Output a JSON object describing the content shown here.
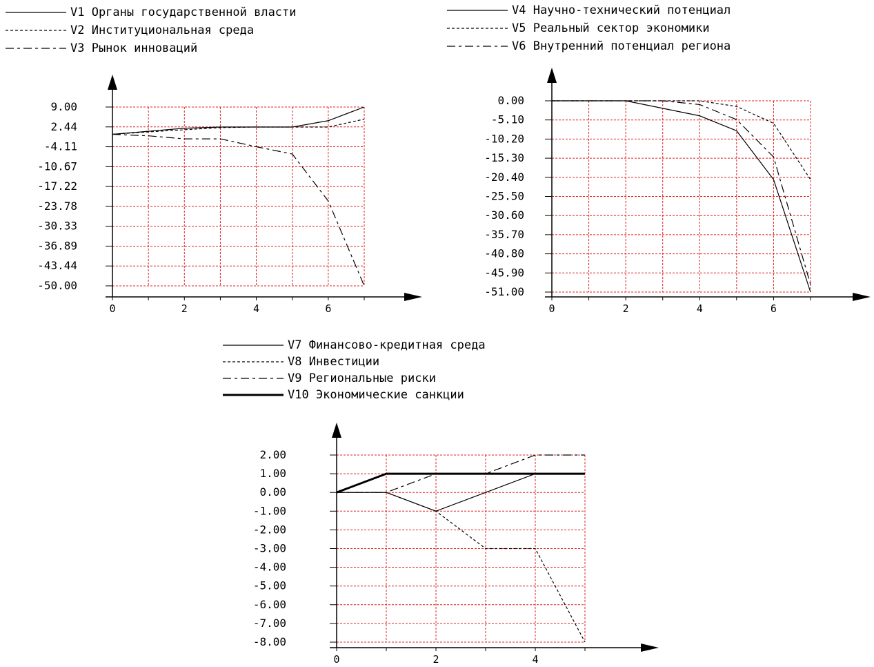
{
  "colors": {
    "grid": "#e02020",
    "ink": "#000000",
    "background": "#ffffff"
  },
  "chart_data": [
    {
      "type": "line",
      "grid": true,
      "legend_placement": "top",
      "x": [
        0,
        1,
        2,
        3,
        4,
        5,
        6,
        7
      ],
      "xticks": [
        "0",
        "2",
        "4",
        "6"
      ],
      "yticks": [
        "9.00",
        "2.44",
        "-4.11",
        "-10.67",
        "-17.22",
        "-23.78",
        "-30.33",
        "-36.89",
        "-43.44",
        "-50.00"
      ],
      "ylim": [
        -50,
        9
      ],
      "xlim": [
        0,
        7
      ],
      "series": [
        {
          "name": "V1 Органы государственной власти",
          "style": "solid",
          "values": [
            0,
            1,
            2,
            2.4,
            2.4,
            2.4,
            4.5,
            9
          ]
        },
        {
          "name": "V2 Институциональная среда",
          "style": "dashed",
          "values": [
            0,
            0.8,
            1.5,
            2.2,
            2.4,
            2.4,
            2.4,
            5
          ]
        },
        {
          "name": "V3 Рынок инноваций",
          "style": "dashdot",
          "values": [
            0,
            -0.5,
            -1.5,
            -1.5,
            -4.1,
            -6.5,
            -22,
            -50
          ]
        }
      ]
    },
    {
      "type": "line",
      "grid": true,
      "legend_placement": "top",
      "x": [
        0,
        1,
        2,
        3,
        4,
        5,
        6,
        7
      ],
      "xticks": [
        "0",
        "2",
        "4",
        "6"
      ],
      "yticks": [
        "0.00",
        "-5.10",
        "-10.20",
        "-15.30",
        "-20.40",
        "-25.50",
        "-30.60",
        "-35.70",
        "-40.80",
        "-45.90",
        "-51.00"
      ],
      "ylim": [
        -51,
        0
      ],
      "xlim": [
        0,
        7
      ],
      "series": [
        {
          "name": "V4 Научно-технический потенциал",
          "style": "solid",
          "values": [
            0,
            0,
            0,
            -2,
            -4,
            -8,
            -21,
            -51
          ]
        },
        {
          "name": "V5 Реальный сектор экономики",
          "style": "dashed",
          "values": [
            0,
            0,
            0,
            0,
            0,
            -1.5,
            -6,
            -21
          ]
        },
        {
          "name": "V6 Внутренний потенциал региона",
          "style": "dashdot",
          "values": [
            0,
            0,
            0,
            0,
            -1,
            -5,
            -15,
            -49
          ]
        }
      ]
    },
    {
      "type": "line",
      "grid": true,
      "legend_placement": "top",
      "x": [
        0,
        1,
        2,
        3,
        4,
        5
      ],
      "xticks": [
        "0",
        "2",
        "4"
      ],
      "yticks": [
        "2.00",
        "1.00",
        "0.00",
        "-1.00",
        "-2.00",
        "-3.00",
        "-4.00",
        "-5.00",
        "-6.00",
        "-7.00",
        "-8.00"
      ],
      "ylim": [
        -8,
        2
      ],
      "xlim": [
        0,
        5
      ],
      "series": [
        {
          "name": "V7 Финансово-кредитная среда",
          "style": "solid",
          "values": [
            0,
            0,
            -1,
            0,
            1,
            1
          ]
        },
        {
          "name": "V8 Инвестиции",
          "style": "dashed",
          "values": [
            0,
            0,
            -1,
            -3,
            -3,
            -8
          ]
        },
        {
          "name": "V9 Региональные риски",
          "style": "dashdot",
          "values": [
            0,
            0,
            1,
            1,
            2,
            2
          ]
        },
        {
          "name": "V10 Экономические санкции",
          "style": "bold",
          "values": [
            0,
            1,
            1,
            1,
            1,
            1
          ]
        }
      ]
    }
  ]
}
